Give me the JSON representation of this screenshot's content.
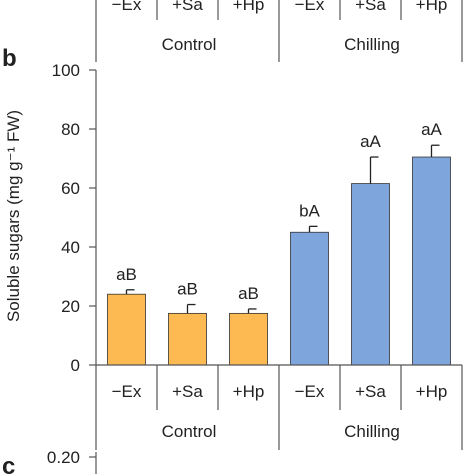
{
  "top_fragment": {
    "tick_labels": [
      "−Ex",
      "+Sa",
      "+Hp",
      "−Ex",
      "+Sa",
      "+Hp"
    ],
    "groups": [
      "Control",
      "Chilling"
    ]
  },
  "panel_b_letter": "b",
  "panel_c_letter": "c",
  "panel_c_first_tick": "0.20",
  "colors": {
    "control_bar": "#FDBA53",
    "chilling_bar": "#7FA6DC",
    "bar_outline": "#333333",
    "axis": "#555555"
  },
  "chart_data": {
    "type": "bar",
    "ylabel": "Soluble sugars (mg g⁻¹ FW)",
    "ylim": [
      0,
      100
    ],
    "yticks": [
      0,
      20,
      40,
      60,
      80,
      100
    ],
    "categories": [
      "−Ex",
      "+Sa",
      "+Hp",
      "−Ex",
      "+Sa",
      "+Hp"
    ],
    "groups": [
      {
        "label": "Control",
        "indices": [
          0,
          1,
          2
        ]
      },
      {
        "label": "Chilling",
        "indices": [
          3,
          4,
          5
        ]
      }
    ],
    "values": [
      24,
      17.5,
      17.5,
      45,
      61.5,
      70.5
    ],
    "errors": [
      1.5,
      3,
      1.5,
      2,
      9,
      4
    ],
    "annotations": [
      "aB",
      "aB",
      "aB",
      "bA",
      "aA",
      "aA"
    ],
    "grid": false
  }
}
